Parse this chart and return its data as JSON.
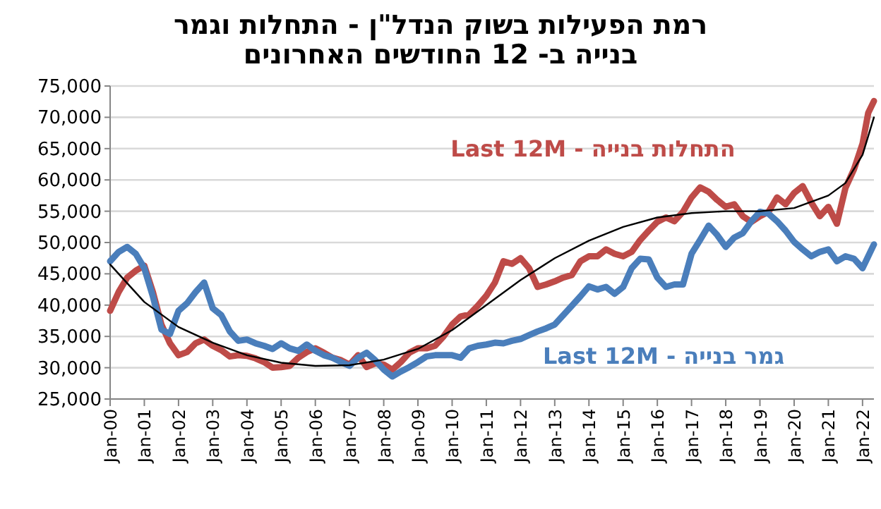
{
  "chart_data": {
    "type": "line",
    "title": "רמת הפעילות בשוק הנדל\"ן - התחלות וגמר\nבנייה ב- 12 החודשים האחרונים",
    "xlim": [
      "2000-01",
      "2022-05"
    ],
    "xticks": [
      {
        "value": "2000-01",
        "label": "Jan-00"
      },
      {
        "value": "2001-01",
        "label": "Jan-01"
      },
      {
        "value": "2002-01",
        "label": "Jan-02"
      },
      {
        "value": "2003-01",
        "label": "Jan-03"
      },
      {
        "value": "2004-01",
        "label": "Jan-04"
      },
      {
        "value": "2005-01",
        "label": "Jan-05"
      },
      {
        "value": "2006-01",
        "label": "Jan-06"
      },
      {
        "value": "2007-01",
        "label": "Jan-07"
      },
      {
        "value": "2008-01",
        "label": "Jan-08"
      },
      {
        "value": "2009-01",
        "label": "Jan-09"
      },
      {
        "value": "2010-01",
        "label": "Jan-10"
      },
      {
        "value": "2011-01",
        "label": "Jan-11"
      },
      {
        "value": "2012-01",
        "label": "Jan-12"
      },
      {
        "value": "2013-01",
        "label": "Jan-13"
      },
      {
        "value": "2014-01",
        "label": "Jan-14"
      },
      {
        "value": "2015-01",
        "label": "Jan-15"
      },
      {
        "value": "2016-01",
        "label": "Jan-16"
      },
      {
        "value": "2017-01",
        "label": "Jan-17"
      },
      {
        "value": "2018-01",
        "label": "Jan-18"
      },
      {
        "value": "2019-01",
        "label": "Jan-19"
      },
      {
        "value": "2020-01",
        "label": "Jan-20"
      },
      {
        "value": "2021-01",
        "label": "Jan-21"
      },
      {
        "value": "2022-01",
        "label": "Jan-22"
      }
    ],
    "ylim": [
      25000,
      75000
    ],
    "yticks": [
      {
        "value": 25000,
        "label": "25,000"
      },
      {
        "value": 30000,
        "label": "30,000"
      },
      {
        "value": 35000,
        "label": "35,000"
      },
      {
        "value": 40000,
        "label": "40,000"
      },
      {
        "value": 45000,
        "label": "45,000"
      },
      {
        "value": 50000,
        "label": "50,000"
      },
      {
        "value": 55000,
        "label": "55,000"
      },
      {
        "value": 60000,
        "label": "60,000"
      },
      {
        "value": 65000,
        "label": "65,000"
      },
      {
        "value": 70000,
        "label": "70,000"
      },
      {
        "value": 75000,
        "label": "75,000"
      }
    ],
    "grid": "y",
    "x": [
      "2000-01",
      "2000-04",
      "2000-07",
      "2000-10",
      "2001-01",
      "2001-04",
      "2001-07",
      "2001-10",
      "2002-01",
      "2002-04",
      "2002-07",
      "2002-10",
      "2003-01",
      "2003-04",
      "2003-07",
      "2003-10",
      "2004-01",
      "2004-04",
      "2004-07",
      "2004-10",
      "2005-01",
      "2005-04",
      "2005-07",
      "2005-10",
      "2006-01",
      "2006-04",
      "2006-07",
      "2006-10",
      "2007-01",
      "2007-04",
      "2007-07",
      "2007-10",
      "2008-01",
      "2008-04",
      "2008-07",
      "2008-10",
      "2009-01",
      "2009-04",
      "2009-07",
      "2009-10",
      "2010-01",
      "2010-04",
      "2010-07",
      "2010-10",
      "2011-01",
      "2011-04",
      "2011-07",
      "2011-10",
      "2012-01",
      "2012-04",
      "2012-07",
      "2012-10",
      "2013-01",
      "2013-04",
      "2013-07",
      "2013-10",
      "2014-01",
      "2014-04",
      "2014-07",
      "2014-10",
      "2015-01",
      "2015-04",
      "2015-07",
      "2015-10",
      "2016-01",
      "2016-04",
      "2016-07",
      "2016-10",
      "2017-01",
      "2017-04",
      "2017-07",
      "2017-10",
      "2018-01",
      "2018-04",
      "2018-07",
      "2018-10",
      "2019-01",
      "2019-04",
      "2019-07",
      "2019-10",
      "2020-01",
      "2020-04",
      "2020-07",
      "2020-10",
      "2021-01",
      "2021-04",
      "2021-07",
      "2021-10",
      "2022-01",
      "2022-03",
      "2022-05"
    ],
    "series": [
      {
        "name": "התחלות בנייה - Last 12M",
        "color": "#be4b48",
        "values": [
          39100,
          42100,
          44400,
          45500,
          46300,
          42100,
          36900,
          33900,
          32000,
          32500,
          33900,
          34500,
          33500,
          32800,
          31800,
          32000,
          31900,
          31500,
          30900,
          30000,
          30100,
          30300,
          31600,
          32500,
          33100,
          32400,
          31600,
          31200,
          30500,
          32000,
          30100,
          30700,
          30500,
          29700,
          30900,
          32400,
          33100,
          33100,
          33500,
          35000,
          36900,
          38200,
          38500,
          39900,
          41500,
          43600,
          47000,
          46600,
          47500,
          45900,
          42900,
          43300,
          43800,
          44400,
          44800,
          47000,
          47800,
          47800,
          48900,
          48200,
          47800,
          48500,
          50400,
          51900,
          53300,
          54000,
          53400,
          54900,
          57200,
          58800,
          58100,
          56800,
          55700,
          56100,
          54200,
          53300,
          54200,
          54900,
          57200,
          56100,
          57900,
          59000,
          56400,
          54200,
          55700,
          53000,
          58700,
          61700,
          65800,
          70700,
          72600
        ]
      },
      {
        "name": "גמר בנייה - Last 12M",
        "color": "#4a7ebb",
        "values": [
          47000,
          48500,
          49300,
          48200,
          45900,
          41400,
          36100,
          35400,
          39100,
          40300,
          42100,
          43600,
          39500,
          38400,
          35800,
          34300,
          34500,
          33900,
          33500,
          33000,
          33900,
          33100,
          32700,
          33700,
          32700,
          32000,
          31600,
          30900,
          30300,
          31600,
          32400,
          31200,
          29700,
          28600,
          29400,
          30100,
          30900,
          31800,
          32000,
          32000,
          32000,
          31600,
          33100,
          33500,
          33700,
          34000,
          33900,
          34300,
          34600,
          35200,
          35800,
          36300,
          36900,
          38400,
          39900,
          41400,
          43000,
          42500,
          42900,
          41800,
          42900,
          45900,
          47400,
          47300,
          44400,
          42900,
          43300,
          43300,
          48200,
          50400,
          52700,
          51200,
          49300,
          50800,
          51500,
          53400,
          54900,
          54600,
          53400,
          51900,
          50100,
          48900,
          47800,
          48500,
          48900,
          47000,
          47800,
          47400,
          45900,
          47800,
          49700
        ]
      },
      {
        "type": "line",
        "color": "#000000",
        "x": [
          "2000-01",
          "2001-01",
          "2002-01",
          "2003-01",
          "2004-01",
          "2005-01",
          "2006-01",
          "2007-01",
          "2008-01",
          "2009-01",
          "2010-01",
          "2011-01",
          "2012-01",
          "2013-01",
          "2014-01",
          "2015-01",
          "2016-01",
          "2017-01",
          "2018-01",
          "2019-01",
          "2020-01",
          "2021-01",
          "2021-07",
          "2022-01",
          "2022-05"
        ],
        "values": [
          46500,
          40500,
          36500,
          34000,
          32000,
          30800,
          30300,
          30400,
          31300,
          33000,
          36000,
          40000,
          44000,
          47500,
          50300,
          52500,
          54000,
          54700,
          55000,
          55000,
          55500,
          57500,
          59500,
          64000,
          70000
        ]
      }
    ]
  }
}
